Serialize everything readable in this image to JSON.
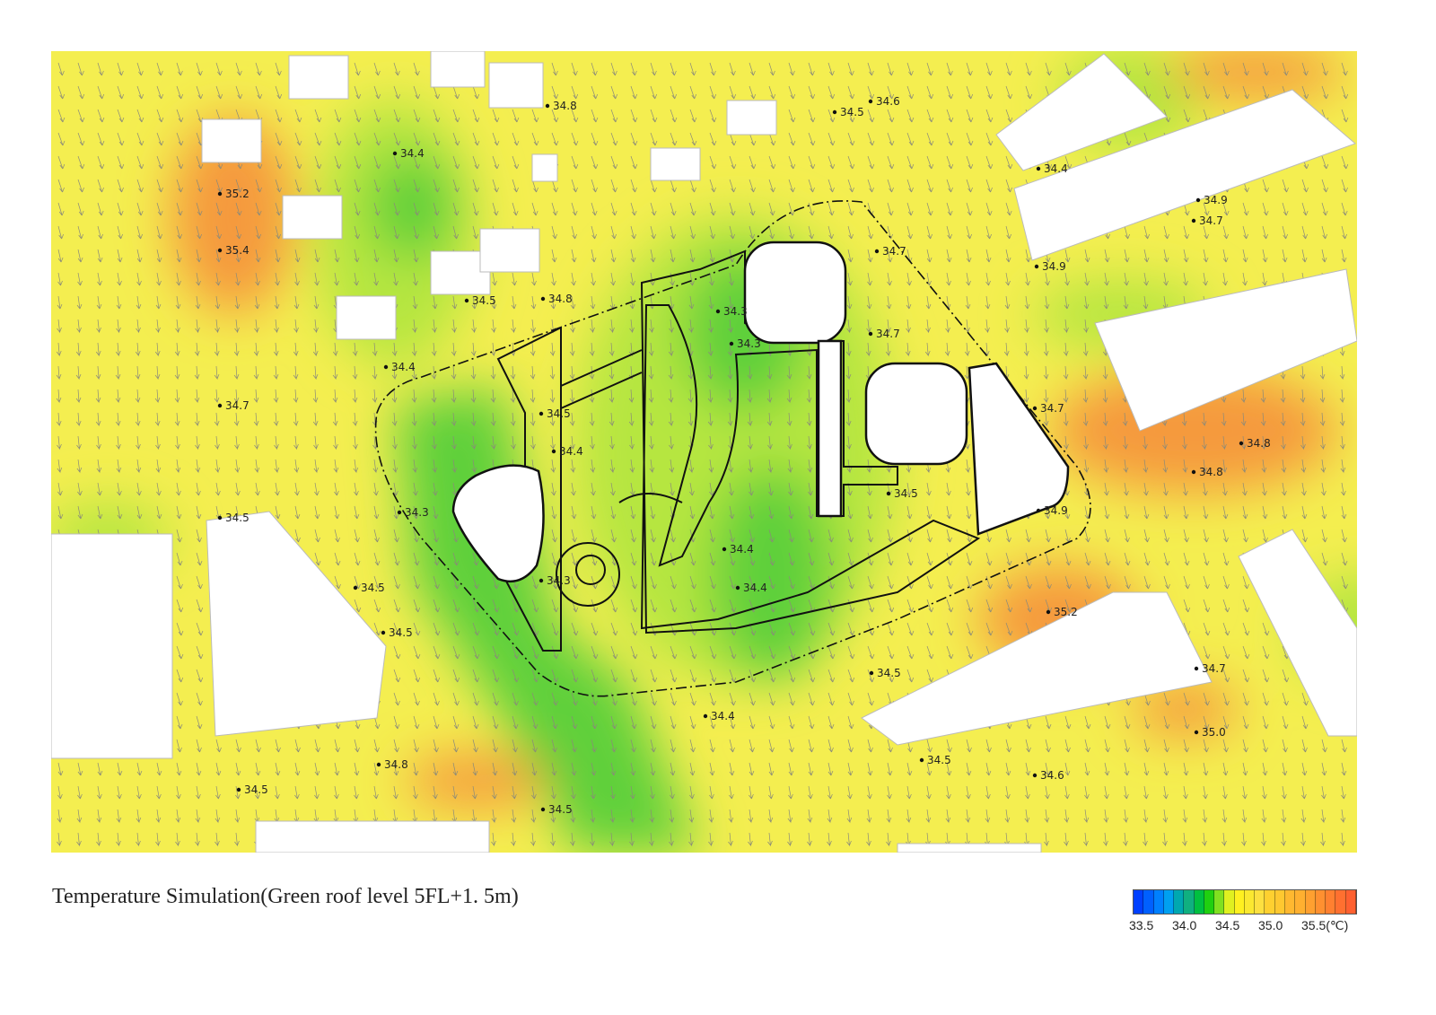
{
  "title": "Temperature Simulation(Green roof level 5FL+1. 5m)",
  "legend": {
    "ticks": [
      "33.5",
      "34.0",
      "34.5",
      "35.0",
      "35.5(℃)"
    ],
    "colors": [
      "#0040ff",
      "#0060ff",
      "#0080ff",
      "#00a0f0",
      "#00a8b0",
      "#10b080",
      "#00c040",
      "#20d010",
      "#80e020",
      "#e0f020",
      "#fff020",
      "#fbe830",
      "#fde040",
      "#ffd030",
      "#ffc830",
      "#ffb830",
      "#ffb030",
      "#ffa030",
      "#ff9030",
      "#ff8030",
      "#ff7030",
      "#ff6030"
    ]
  },
  "map": {
    "colors": {
      "base": "#f4ee50",
      "green": "#5fd03a",
      "light_green": "#b6e640",
      "orange": "#f59a3c",
      "building": "#ffffff"
    },
    "temperature_labels": [
      "34.8",
      "34.5",
      "34.6",
      "34.4",
      "35.2",
      "34.4",
      "34.9",
      "34.7",
      "35.4",
      "34.7",
      "34.9",
      "34.5",
      "34.8",
      "34.3",
      "34.3",
      "34.7",
      "34.4",
      "34.7",
      "34.5",
      "34.7",
      "34.8",
      "34.4",
      "34.8",
      "34.5",
      "34.3",
      "34.5",
      "34.9",
      "34.4",
      "34.3",
      "34.4",
      "34.5",
      "35.2",
      "34.5",
      "34.5",
      "34.7",
      "34.4",
      "35.0",
      "34.8",
      "34.5",
      "34.6",
      "34.5",
      "34.5"
    ]
  }
}
